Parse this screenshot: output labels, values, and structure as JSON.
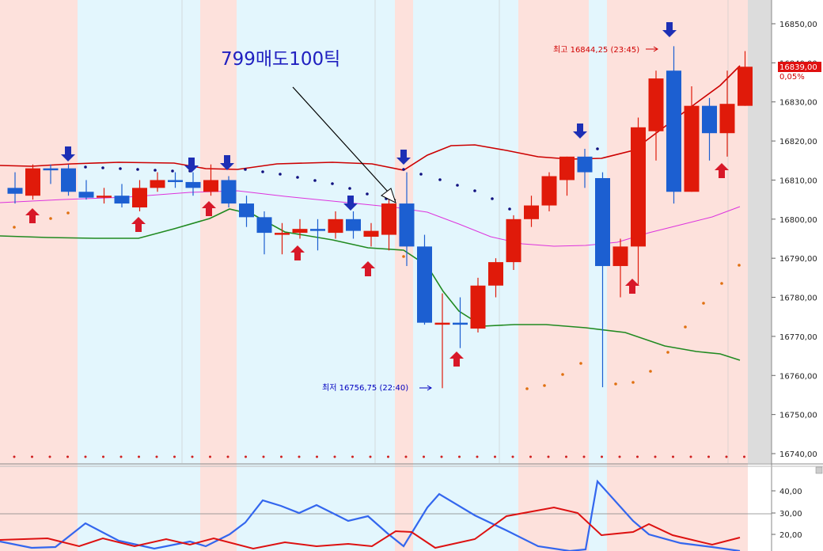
{
  "chart_data": {
    "type": "candlestick",
    "y_axis_labels": [
      "16850,00",
      "16840,00",
      "16830,00",
      "16820,00",
      "16810,00",
      "16800,00",
      "16790,00",
      "16780,00",
      "16770,00",
      "16760,00",
      "16750,00",
      "16740,00"
    ],
    "ylim": [
      16736,
      16855
    ],
    "current_price": {
      "value": 16839,
      "label": "16839,00",
      "change": "0,05%"
    },
    "annotations": {
      "title_note": "799매도100틱",
      "high_label": "최고 16844,25 (23:45)",
      "low_label": "최저 16756,75 (22:40)"
    },
    "candles": [
      {
        "o": 16806.5,
        "h": 16812,
        "l": 16804,
        "c": 16808,
        "dir": "down"
      },
      {
        "o": 16806,
        "h": 16814,
        "l": 16805,
        "c": 16813,
        "dir": "up"
      },
      {
        "o": 16813,
        "h": 16814,
        "l": 16809,
        "c": 16813,
        "dir": "down"
      },
      {
        "o": 16813,
        "h": 16814,
        "l": 16806,
        "c": 16807,
        "dir": "down"
      },
      {
        "o": 16807,
        "h": 16810,
        "l": 16805,
        "c": 16805.5,
        "dir": "down"
      },
      {
        "o": 16805.5,
        "h": 16808,
        "l": 16804,
        "c": 16806,
        "dir": "up"
      },
      {
        "o": 16806,
        "h": 16809,
        "l": 16803,
        "c": 16804,
        "dir": "down"
      },
      {
        "o": 16803,
        "h": 16810,
        "l": 16802,
        "c": 16808,
        "dir": "up"
      },
      {
        "o": 16808,
        "h": 16812,
        "l": 16807,
        "c": 16810,
        "dir": "up"
      },
      {
        "o": 16810,
        "h": 16812,
        "l": 16808,
        "c": 16809.5,
        "dir": "down"
      },
      {
        "o": 16809.5,
        "h": 16812,
        "l": 16806,
        "c": 16808,
        "dir": "down"
      },
      {
        "o": 16807,
        "h": 16814,
        "l": 16806,
        "c": 16810,
        "dir": "up"
      },
      {
        "o": 16810,
        "h": 16811,
        "l": 16803,
        "c": 16804,
        "dir": "down"
      },
      {
        "o": 16804,
        "h": 16806,
        "l": 16798,
        "c": 16800.5,
        "dir": "down"
      },
      {
        "o": 16800.5,
        "h": 16802,
        "l": 16791,
        "c": 16796.5,
        "dir": "down"
      },
      {
        "o": 16796.5,
        "h": 16799,
        "l": 16791,
        "c": 16796,
        "dir": "up"
      },
      {
        "o": 16796.5,
        "h": 16800,
        "l": 16795,
        "c": 16797.5,
        "dir": "up"
      },
      {
        "o": 16797.5,
        "h": 16800,
        "l": 16792,
        "c": 16797,
        "dir": "down"
      },
      {
        "o": 16796.5,
        "h": 16802,
        "l": 16795,
        "c": 16800,
        "dir": "up"
      },
      {
        "o": 16800,
        "h": 16802,
        "l": 16795,
        "c": 16797,
        "dir": "down"
      },
      {
        "o": 16795.5,
        "h": 16799,
        "l": 16793,
        "c": 16797,
        "dir": "up"
      },
      {
        "o": 16796,
        "h": 16805,
        "l": 16792,
        "c": 16804,
        "dir": "up"
      },
      {
        "o": 16804,
        "h": 16812,
        "l": 16788,
        "c": 16793,
        "dir": "down"
      },
      {
        "o": 16793,
        "h": 16796,
        "l": 16773,
        "c": 16773.5,
        "dir": "down"
      },
      {
        "o": 16773.5,
        "h": 16781,
        "l": 16756.75,
        "c": 16773.5,
        "dir": "up"
      },
      {
        "o": 16773.5,
        "h": 16780,
        "l": 16767,
        "c": 16773,
        "dir": "down"
      },
      {
        "o": 16772,
        "h": 16785,
        "l": 16771,
        "c": 16783,
        "dir": "up"
      },
      {
        "o": 16783,
        "h": 16790,
        "l": 16780,
        "c": 16789,
        "dir": "up"
      },
      {
        "o": 16789,
        "h": 16801,
        "l": 16787,
        "c": 16800,
        "dir": "up"
      },
      {
        "o": 16800,
        "h": 16806,
        "l": 16798,
        "c": 16803.5,
        "dir": "up"
      },
      {
        "o": 16803.5,
        "h": 16812,
        "l": 16802,
        "c": 16811,
        "dir": "up"
      },
      {
        "o": 16810,
        "h": 16816,
        "l": 16806,
        "c": 16816,
        "dir": "up"
      },
      {
        "o": 16816,
        "h": 16818,
        "l": 16808,
        "c": 16812,
        "dir": "down"
      },
      {
        "o": 16810.5,
        "h": 16812,
        "l": 16757,
        "c": 16788,
        "dir": "down"
      },
      {
        "o": 16788,
        "h": 16795,
        "l": 16780,
        "c": 16793,
        "dir": "up"
      },
      {
        "o": 16793,
        "h": 16826,
        "l": 16783,
        "c": 16823.5,
        "dir": "up"
      },
      {
        "o": 16822.5,
        "h": 16838,
        "l": 16815,
        "c": 16836,
        "dir": "up"
      },
      {
        "o": 16838,
        "h": 16844.25,
        "l": 16804,
        "c": 16807,
        "dir": "down"
      },
      {
        "o": 16807,
        "h": 16834,
        "l": 16807,
        "c": 16829,
        "dir": "up"
      },
      {
        "o": 16829,
        "h": 16831,
        "l": 16815,
        "c": 16822,
        "dir": "down"
      },
      {
        "o": 16822,
        "h": 16838,
        "l": 16816,
        "c": 16829.5,
        "dir": "up"
      },
      {
        "o": 16829,
        "h": 16843,
        "l": 16829,
        "c": 16839,
        "dir": "up"
      }
    ],
    "indicator_axis_labels": [
      "40,00",
      "30,00",
      "20,00"
    ],
    "indicator_ylim": [
      14,
      48
    ]
  }
}
